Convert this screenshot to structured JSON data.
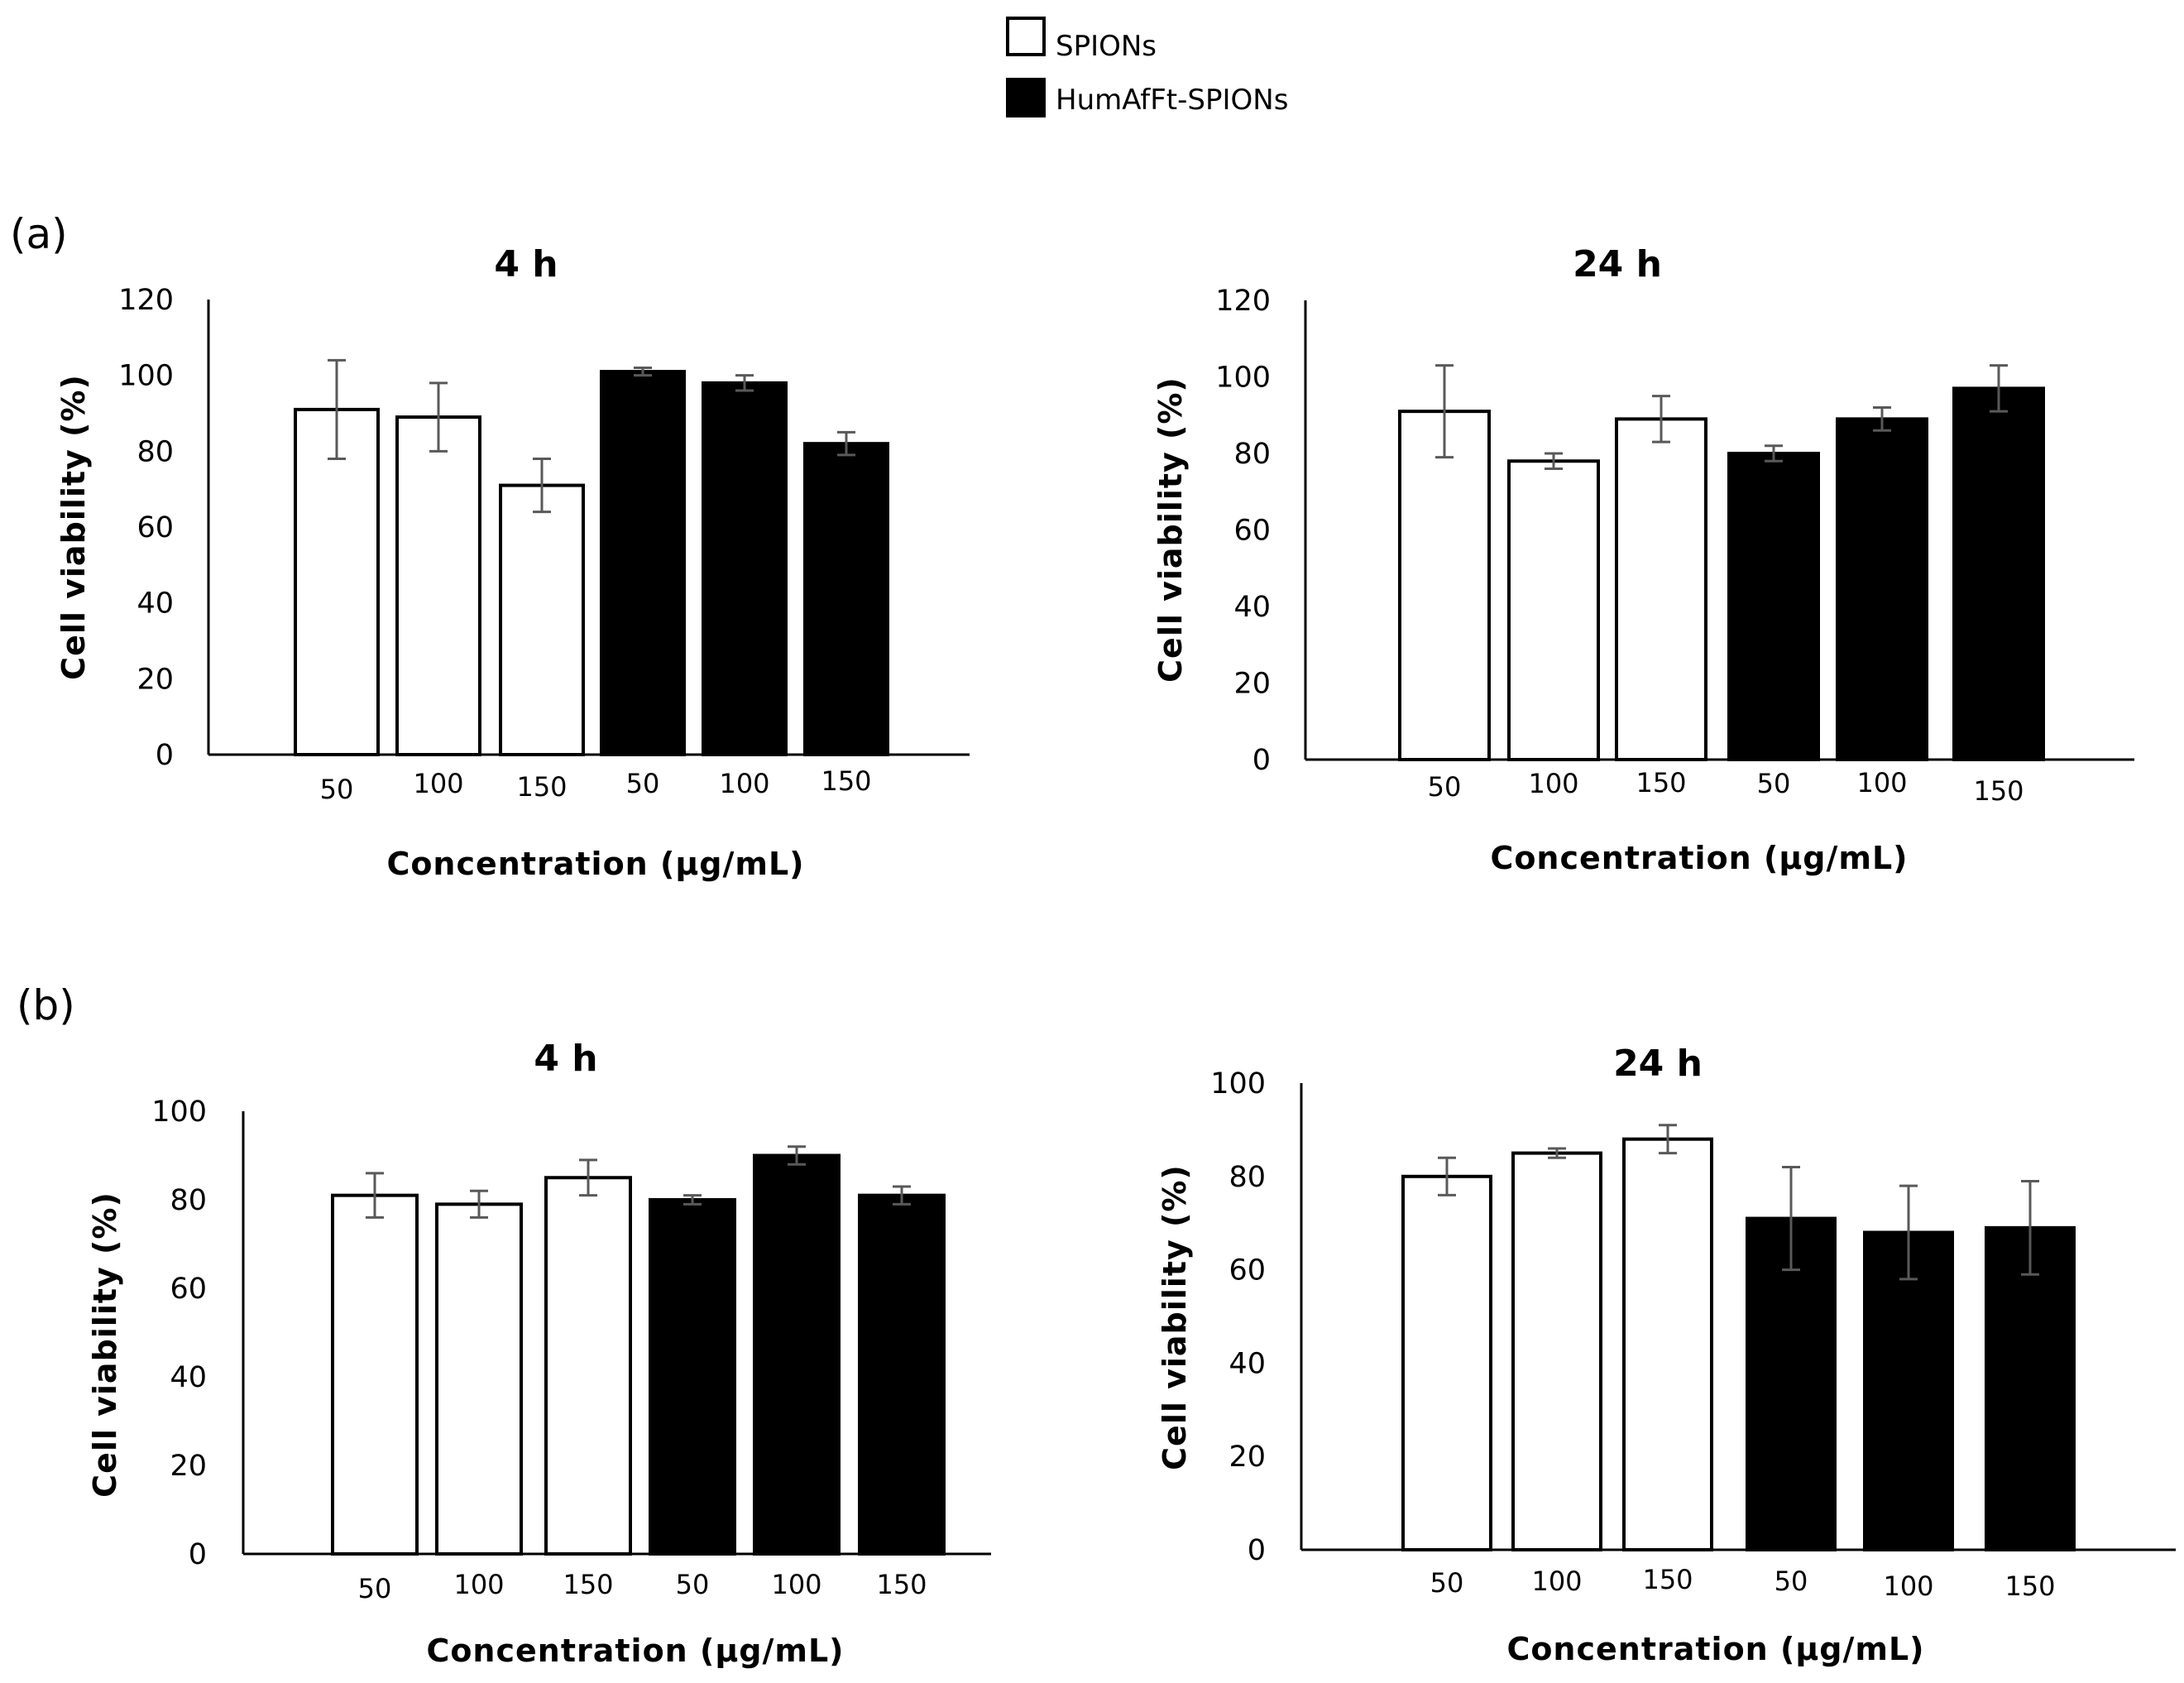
{
  "legend": [
    {
      "label": "SPIONs",
      "fill": "#ffffff"
    },
    {
      "label": "HumAfFt-SPIONs",
      "fill": "#000000"
    }
  ],
  "panels": {
    "a": "(a)",
    "b": "(b)"
  },
  "colors": {
    "outline": "#000000",
    "error_bar": "#595959",
    "background": "#ffffff"
  },
  "chart_data": [
    {
      "id": "a-4h",
      "type": "bar",
      "title": "4 h",
      "xlabel": "Concentration (µg/mL)",
      "ylabel": "Cell viability (%)",
      "ylim": [
        0,
        120
      ],
      "yticks": [
        0,
        20,
        40,
        60,
        80,
        100,
        120
      ],
      "categories": [
        "50",
        "100",
        "150",
        "50",
        "100",
        "150"
      ],
      "series_index": [
        0,
        0,
        0,
        1,
        1,
        1
      ],
      "values": [
        91,
        89,
        71,
        101,
        98,
        82
      ],
      "errors": [
        13,
        9,
        7,
        1,
        2,
        3
      ],
      "grid": false
    },
    {
      "id": "a-24h",
      "type": "bar",
      "title": "24 h",
      "xlabel": "Concentration (µg/mL)",
      "ylabel": "Cell viability (%)",
      "ylim": [
        0,
        120
      ],
      "yticks": [
        0,
        20,
        40,
        60,
        80,
        100,
        120
      ],
      "categories": [
        "50",
        "100",
        "150",
        "50",
        "100",
        "150"
      ],
      "series_index": [
        0,
        0,
        0,
        1,
        1,
        1
      ],
      "values": [
        91,
        78,
        89,
        80,
        89,
        97
      ],
      "errors": [
        12,
        2,
        6,
        2,
        3,
        6
      ],
      "grid": false
    },
    {
      "id": "b-4h",
      "type": "bar",
      "title": "4 h",
      "xlabel": "Concentration (µg/mL)",
      "ylabel": "Cell viability (%)",
      "ylim": [
        0,
        100
      ],
      "yticks": [
        0,
        20,
        40,
        60,
        80,
        100
      ],
      "categories": [
        "50",
        "100",
        "150",
        "50",
        "100",
        "150"
      ],
      "series_index": [
        0,
        0,
        0,
        1,
        1,
        1
      ],
      "values": [
        81,
        79,
        85,
        80,
        90,
        81
      ],
      "errors": [
        5,
        3,
        4,
        1,
        2,
        2
      ],
      "grid": false
    },
    {
      "id": "b-24h",
      "type": "bar",
      "title": "24 h",
      "xlabel": "Concentration (µg/mL)",
      "ylabel": "Cell viability (%)",
      "ylim": [
        0,
        100
      ],
      "yticks": [
        0,
        20,
        40,
        60,
        80,
        100
      ],
      "categories": [
        "50",
        "100",
        "150",
        "50",
        "100",
        "150"
      ],
      "series_index": [
        0,
        0,
        0,
        1,
        1,
        1
      ],
      "values": [
        80,
        85,
        88,
        71,
        68,
        69
      ],
      "errors": [
        4,
        1,
        3,
        11,
        10,
        10
      ],
      "grid": false
    }
  ]
}
